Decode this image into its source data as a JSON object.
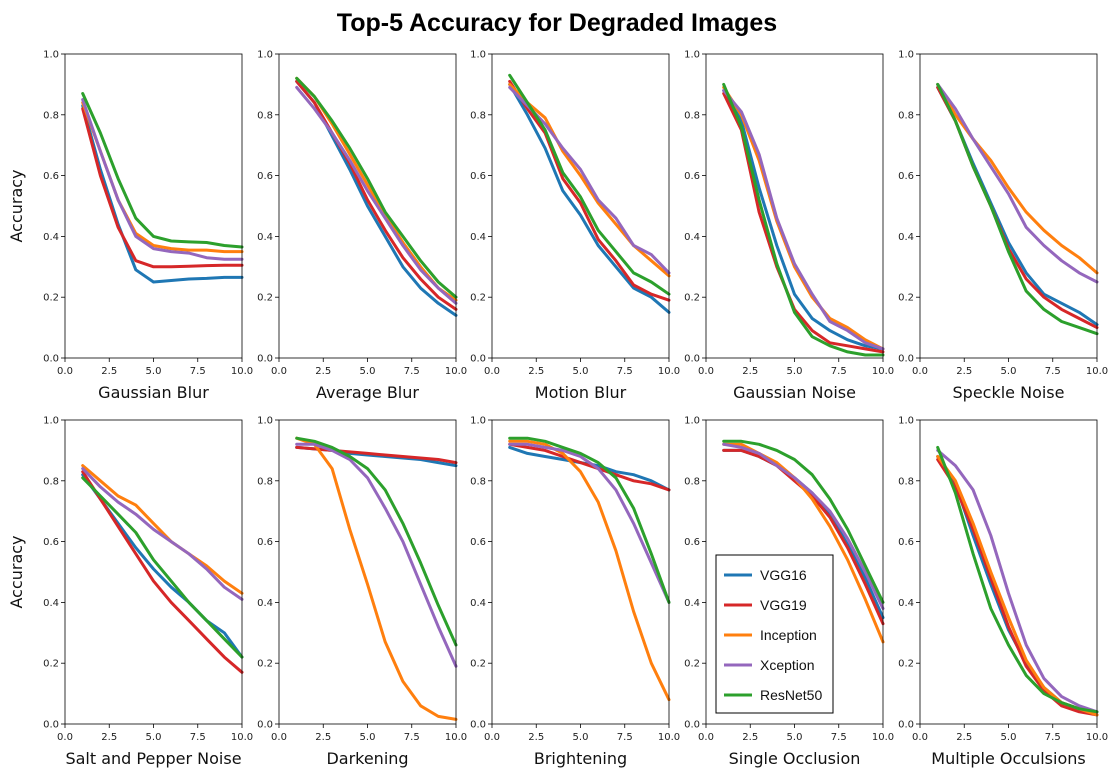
{
  "title": "Top-5 Accuracy for Degraded Images",
  "colors": {
    "VGG16": "#1f77b4",
    "VGG19": "#d62728",
    "Inception": "#ff7f0e",
    "Xception": "#9467bd",
    "ResNet50": "#2ca02c"
  },
  "legend": {
    "entries": [
      "VGG16",
      "VGG19",
      "Inception",
      "Xception",
      "ResNet50"
    ],
    "placement": "inside panel 'Single Occlusion', left"
  },
  "ylabel": "Accuracy",
  "xticks": [
    "0.0",
    "2.5",
    "5.0",
    "7.5",
    "10.0"
  ],
  "yticks": [
    "0.0",
    "0.2",
    "0.4",
    "0.6",
    "0.8",
    "1.0"
  ],
  "chart_data": [
    {
      "type": "line",
      "xlabel": "Gaussian Blur",
      "xlim": [
        0,
        10
      ],
      "ylim": [
        0,
        1
      ],
      "x": [
        1,
        2,
        3,
        4,
        5,
        6,
        7,
        8,
        9,
        10
      ],
      "series": [
        {
          "name": "VGG16",
          "values": [
            0.83,
            0.62,
            0.44,
            0.29,
            0.25,
            0.255,
            0.26,
            0.262,
            0.265,
            0.265
          ]
        },
        {
          "name": "VGG19",
          "values": [
            0.82,
            0.6,
            0.43,
            0.32,
            0.3,
            0.3,
            0.302,
            0.304,
            0.305,
            0.305
          ]
        },
        {
          "name": "Inception",
          "values": [
            0.84,
            0.68,
            0.52,
            0.41,
            0.37,
            0.36,
            0.355,
            0.355,
            0.35,
            0.35
          ]
        },
        {
          "name": "Xception",
          "values": [
            0.85,
            0.68,
            0.52,
            0.4,
            0.36,
            0.35,
            0.345,
            0.33,
            0.325,
            0.325
          ]
        },
        {
          "name": "ResNet50",
          "values": [
            0.87,
            0.74,
            0.59,
            0.46,
            0.4,
            0.385,
            0.382,
            0.38,
            0.37,
            0.365
          ]
        }
      ]
    },
    {
      "type": "line",
      "xlabel": "Average Blur",
      "xlim": [
        0,
        10
      ],
      "ylim": [
        0,
        1
      ],
      "x": [
        1,
        2,
        3,
        4,
        5,
        6,
        7,
        8,
        9,
        10
      ],
      "series": [
        {
          "name": "VGG16",
          "values": [
            0.91,
            0.84,
            0.73,
            0.62,
            0.5,
            0.4,
            0.3,
            0.23,
            0.18,
            0.14
          ]
        },
        {
          "name": "VGG19",
          "values": [
            0.91,
            0.84,
            0.74,
            0.64,
            0.52,
            0.42,
            0.33,
            0.26,
            0.2,
            0.16
          ]
        },
        {
          "name": "Inception",
          "values": [
            0.92,
            0.86,
            0.77,
            0.67,
            0.57,
            0.47,
            0.38,
            0.3,
            0.23,
            0.19
          ]
        },
        {
          "name": "Xception",
          "values": [
            0.89,
            0.82,
            0.74,
            0.65,
            0.55,
            0.46,
            0.37,
            0.29,
            0.23,
            0.18
          ]
        },
        {
          "name": "ResNet50",
          "values": [
            0.92,
            0.86,
            0.78,
            0.69,
            0.59,
            0.48,
            0.4,
            0.32,
            0.25,
            0.2
          ]
        }
      ]
    },
    {
      "type": "line",
      "xlabel": "Motion Blur",
      "xlim": [
        0,
        10
      ],
      "ylim": [
        0,
        1
      ],
      "x": [
        1,
        2,
        3,
        4,
        5,
        6,
        7,
        8,
        9,
        10
      ],
      "series": [
        {
          "name": "VGG16",
          "values": [
            0.9,
            0.8,
            0.69,
            0.55,
            0.47,
            0.37,
            0.3,
            0.23,
            0.2,
            0.15
          ]
        },
        {
          "name": "VGG19",
          "values": [
            0.91,
            0.82,
            0.74,
            0.59,
            0.51,
            0.39,
            0.32,
            0.24,
            0.21,
            0.19
          ]
        },
        {
          "name": "Inception",
          "values": [
            0.9,
            0.84,
            0.79,
            0.68,
            0.6,
            0.51,
            0.44,
            0.37,
            0.32,
            0.27
          ]
        },
        {
          "name": "Xception",
          "values": [
            0.89,
            0.83,
            0.77,
            0.69,
            0.62,
            0.52,
            0.46,
            0.37,
            0.34,
            0.28
          ]
        },
        {
          "name": "ResNet50",
          "values": [
            0.93,
            0.84,
            0.75,
            0.61,
            0.53,
            0.42,
            0.35,
            0.28,
            0.25,
            0.21
          ]
        }
      ]
    },
    {
      "type": "line",
      "xlabel": "Gaussian Noise",
      "xlim": [
        0,
        10
      ],
      "ylim": [
        0,
        1
      ],
      "x": [
        1,
        2,
        3,
        4,
        5,
        6,
        7,
        8,
        9,
        10
      ],
      "series": [
        {
          "name": "VGG16",
          "values": [
            0.88,
            0.78,
            0.56,
            0.37,
            0.21,
            0.13,
            0.09,
            0.06,
            0.04,
            0.03
          ]
        },
        {
          "name": "VGG19",
          "values": [
            0.87,
            0.75,
            0.48,
            0.3,
            0.16,
            0.09,
            0.05,
            0.04,
            0.03,
            0.02
          ]
        },
        {
          "name": "Inception",
          "values": [
            0.89,
            0.8,
            0.65,
            0.45,
            0.3,
            0.2,
            0.13,
            0.1,
            0.06,
            0.03
          ]
        },
        {
          "name": "Xception",
          "values": [
            0.88,
            0.81,
            0.67,
            0.46,
            0.31,
            0.21,
            0.12,
            0.09,
            0.05,
            0.03
          ]
        },
        {
          "name": "ResNet50",
          "values": [
            0.9,
            0.76,
            0.52,
            0.31,
            0.15,
            0.07,
            0.04,
            0.02,
            0.01,
            0.01
          ]
        }
      ]
    },
    {
      "type": "line",
      "xlabel": "Speckle Noise",
      "xlim": [
        0,
        10
      ],
      "ylim": [
        0,
        1
      ],
      "x": [
        1,
        2,
        3,
        4,
        5,
        6,
        7,
        8,
        9,
        10
      ],
      "series": [
        {
          "name": "VGG16",
          "values": [
            0.89,
            0.78,
            0.64,
            0.51,
            0.38,
            0.28,
            0.21,
            0.18,
            0.15,
            0.11
          ]
        },
        {
          "name": "VGG19",
          "values": [
            0.89,
            0.78,
            0.63,
            0.5,
            0.36,
            0.26,
            0.2,
            0.16,
            0.13,
            0.1
          ]
        },
        {
          "name": "Inception",
          "values": [
            0.9,
            0.8,
            0.72,
            0.65,
            0.56,
            0.48,
            0.42,
            0.37,
            0.33,
            0.28
          ]
        },
        {
          "name": "Xception",
          "values": [
            0.9,
            0.82,
            0.72,
            0.63,
            0.54,
            0.43,
            0.37,
            0.32,
            0.28,
            0.25
          ]
        },
        {
          "name": "ResNet50",
          "values": [
            0.9,
            0.78,
            0.63,
            0.5,
            0.35,
            0.22,
            0.16,
            0.12,
            0.1,
            0.08
          ]
        }
      ]
    },
    {
      "type": "line",
      "xlabel": "Salt and Pepper Noise",
      "xlim": [
        0,
        10
      ],
      "ylim": [
        0,
        1
      ],
      "x": [
        1,
        2,
        3,
        4,
        5,
        6,
        7,
        8,
        9,
        10
      ],
      "series": [
        {
          "name": "VGG16",
          "values": [
            0.82,
            0.74,
            0.66,
            0.58,
            0.51,
            0.45,
            0.4,
            0.34,
            0.3,
            0.22
          ]
        },
        {
          "name": "VGG19",
          "values": [
            0.83,
            0.74,
            0.65,
            0.56,
            0.47,
            0.4,
            0.34,
            0.28,
            0.22,
            0.17
          ]
        },
        {
          "name": "Inception",
          "values": [
            0.85,
            0.8,
            0.75,
            0.72,
            0.66,
            0.6,
            0.56,
            0.52,
            0.47,
            0.43
          ]
        },
        {
          "name": "Xception",
          "values": [
            0.84,
            0.78,
            0.73,
            0.69,
            0.64,
            0.6,
            0.56,
            0.51,
            0.45,
            0.41
          ]
        },
        {
          "name": "ResNet50",
          "values": [
            0.81,
            0.75,
            0.69,
            0.63,
            0.54,
            0.47,
            0.4,
            0.34,
            0.28,
            0.22
          ]
        }
      ]
    },
    {
      "type": "line",
      "xlabel": "Darkening",
      "xlim": [
        0,
        10
      ],
      "ylim": [
        0,
        1
      ],
      "x": [
        1,
        2,
        3,
        4,
        5,
        6,
        7,
        8,
        9,
        10
      ],
      "series": [
        {
          "name": "VGG16",
          "values": [
            0.91,
            0.905,
            0.9,
            0.89,
            0.885,
            0.88,
            0.875,
            0.87,
            0.86,
            0.85
          ]
        },
        {
          "name": "VGG19",
          "values": [
            0.91,
            0.905,
            0.9,
            0.895,
            0.89,
            0.885,
            0.88,
            0.875,
            0.87,
            0.86
          ]
        },
        {
          "name": "Inception",
          "values": [
            0.94,
            0.92,
            0.84,
            0.64,
            0.46,
            0.27,
            0.14,
            0.06,
            0.025,
            0.015
          ]
        },
        {
          "name": "Xception",
          "values": [
            0.92,
            0.92,
            0.9,
            0.87,
            0.81,
            0.71,
            0.6,
            0.46,
            0.32,
            0.19
          ]
        },
        {
          "name": "ResNet50",
          "values": [
            0.94,
            0.93,
            0.91,
            0.88,
            0.84,
            0.77,
            0.66,
            0.53,
            0.39,
            0.26
          ]
        }
      ]
    },
    {
      "type": "line",
      "xlabel": "Brightening",
      "xlim": [
        0,
        10
      ],
      "ylim": [
        0,
        1
      ],
      "x": [
        1,
        2,
        3,
        4,
        5,
        6,
        7,
        8,
        9,
        10
      ],
      "series": [
        {
          "name": "VGG16",
          "values": [
            0.91,
            0.89,
            0.88,
            0.87,
            0.86,
            0.85,
            0.83,
            0.82,
            0.8,
            0.77
          ]
        },
        {
          "name": "VGG19",
          "values": [
            0.92,
            0.91,
            0.9,
            0.88,
            0.86,
            0.84,
            0.82,
            0.8,
            0.79,
            0.77
          ]
        },
        {
          "name": "Inception",
          "values": [
            0.93,
            0.93,
            0.92,
            0.89,
            0.83,
            0.73,
            0.57,
            0.37,
            0.2,
            0.08
          ]
        },
        {
          "name": "Xception",
          "values": [
            0.92,
            0.92,
            0.91,
            0.9,
            0.88,
            0.84,
            0.77,
            0.66,
            0.53,
            0.4
          ]
        },
        {
          "name": "ResNet50",
          "values": [
            0.94,
            0.94,
            0.93,
            0.91,
            0.89,
            0.86,
            0.81,
            0.71,
            0.56,
            0.4
          ]
        }
      ]
    },
    {
      "type": "line",
      "xlabel": "Single Occlusion",
      "xlim": [
        0,
        10
      ],
      "ylim": [
        0,
        1
      ],
      "x": [
        1,
        2,
        3,
        4,
        5,
        6,
        7,
        8,
        9,
        10
      ],
      "series": [
        {
          "name": "VGG16",
          "values": [
            0.9,
            0.9,
            0.88,
            0.85,
            0.81,
            0.76,
            0.69,
            0.59,
            0.48,
            0.35
          ]
        },
        {
          "name": "VGG19",
          "values": [
            0.9,
            0.9,
            0.88,
            0.85,
            0.8,
            0.75,
            0.68,
            0.58,
            0.46,
            0.33
          ]
        },
        {
          "name": "Inception",
          "values": [
            0.92,
            0.92,
            0.89,
            0.86,
            0.81,
            0.74,
            0.65,
            0.54,
            0.41,
            0.27
          ]
        },
        {
          "name": "Xception",
          "values": [
            0.92,
            0.91,
            0.89,
            0.85,
            0.81,
            0.76,
            0.7,
            0.61,
            0.5,
            0.38
          ]
        },
        {
          "name": "ResNet50",
          "values": [
            0.93,
            0.93,
            0.92,
            0.9,
            0.87,
            0.82,
            0.74,
            0.64,
            0.52,
            0.4
          ]
        }
      ]
    },
    {
      "type": "line",
      "xlabel": "Multiple Occulsions",
      "xlim": [
        0,
        10
      ],
      "ylim": [
        0,
        1
      ],
      "x": [
        1,
        2,
        3,
        4,
        5,
        6,
        7,
        8,
        9,
        10
      ],
      "series": [
        {
          "name": "VGG16",
          "values": [
            0.88,
            0.79,
            0.62,
            0.46,
            0.31,
            0.2,
            0.12,
            0.07,
            0.05,
            0.04
          ]
        },
        {
          "name": "VGG19",
          "values": [
            0.87,
            0.78,
            0.64,
            0.48,
            0.32,
            0.19,
            0.11,
            0.06,
            0.04,
            0.03
          ]
        },
        {
          "name": "Inception",
          "values": [
            0.88,
            0.8,
            0.66,
            0.5,
            0.35,
            0.21,
            0.12,
            0.07,
            0.05,
            0.03
          ]
        },
        {
          "name": "Xception",
          "values": [
            0.9,
            0.85,
            0.77,
            0.62,
            0.43,
            0.26,
            0.15,
            0.09,
            0.06,
            0.04
          ]
        },
        {
          "name": "ResNet50",
          "values": [
            0.91,
            0.76,
            0.56,
            0.38,
            0.26,
            0.16,
            0.1,
            0.07,
            0.05,
            0.04
          ]
        }
      ]
    }
  ]
}
